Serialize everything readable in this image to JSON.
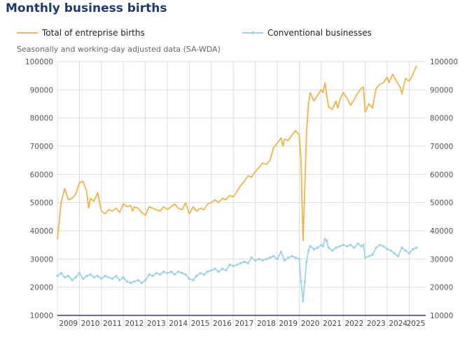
{
  "chart_data": {
    "type": "line",
    "title": "Monthly business births",
    "subtitle": "Seasonally and working-day adjusted data (SA-WDA)",
    "ylim": [
      10000,
      100000
    ],
    "yticks": [
      10000,
      20000,
      30000,
      40000,
      50000,
      60000,
      70000,
      80000,
      90000,
      100000
    ],
    "ytick_labels": [
      "10000",
      "20000",
      "30000",
      "40000",
      "50000",
      "60000",
      "70000",
      "80000",
      "90000",
      "100000"
    ],
    "xlim": [
      2009.0,
      2025.75
    ],
    "year_labels": [
      "2009",
      "2010",
      "2011",
      "2012",
      "2013",
      "2014",
      "2015",
      "2016",
      "2017",
      "2018",
      "2019",
      "2020",
      "2021",
      "2022",
      "2023",
      "2024",
      "2025"
    ],
    "colors": {
      "total": "#f0b448",
      "conventional": "#9dd2e8",
      "grid": "#dddddd",
      "baseline": "#3a3a8c"
    },
    "series": [
      {
        "name": "Total of entreprise births",
        "key": "total",
        "marker": "none",
        "points": [
          [
            2009.0,
            37000
          ],
          [
            2009.17,
            50000
          ],
          [
            2009.33,
            55000
          ],
          [
            2009.5,
            51000
          ],
          [
            2009.67,
            51500
          ],
          [
            2009.83,
            53000
          ],
          [
            2010.0,
            57000
          ],
          [
            2010.17,
            57500
          ],
          [
            2010.33,
            54000
          ],
          [
            2010.42,
            48000
          ],
          [
            2010.5,
            51500
          ],
          [
            2010.67,
            50500
          ],
          [
            2010.83,
            53500
          ],
          [
            2011.0,
            47000
          ],
          [
            2011.17,
            46000
          ],
          [
            2011.33,
            47500
          ],
          [
            2011.5,
            47000
          ],
          [
            2011.67,
            48000
          ],
          [
            2011.83,
            46500
          ],
          [
            2012.0,
            49500
          ],
          [
            2012.17,
            48500
          ],
          [
            2012.33,
            49000
          ],
          [
            2012.42,
            47000
          ],
          [
            2012.5,
            48500
          ],
          [
            2012.67,
            48000
          ],
          [
            2012.83,
            46500
          ],
          [
            2013.0,
            45500
          ],
          [
            2013.17,
            48500
          ],
          [
            2013.33,
            48000
          ],
          [
            2013.5,
            47500
          ],
          [
            2013.67,
            47000
          ],
          [
            2013.83,
            48500
          ],
          [
            2014.0,
            47500
          ],
          [
            2014.17,
            48500
          ],
          [
            2014.33,
            49500
          ],
          [
            2014.5,
            48000
          ],
          [
            2014.67,
            47500
          ],
          [
            2014.83,
            50000
          ],
          [
            2015.0,
            46000
          ],
          [
            2015.17,
            48500
          ],
          [
            2015.33,
            47000
          ],
          [
            2015.5,
            48000
          ],
          [
            2015.67,
            47500
          ],
          [
            2015.83,
            49500
          ],
          [
            2016.0,
            50000
          ],
          [
            2016.17,
            51000
          ],
          [
            2016.33,
            50000
          ],
          [
            2016.5,
            51500
          ],
          [
            2016.67,
            51000
          ],
          [
            2016.83,
            52500
          ],
          [
            2017.0,
            52000
          ],
          [
            2017.17,
            54000
          ],
          [
            2017.33,
            56000
          ],
          [
            2017.5,
            57500
          ],
          [
            2017.67,
            59500
          ],
          [
            2017.83,
            59000
          ],
          [
            2018.0,
            61000
          ],
          [
            2018.17,
            62500
          ],
          [
            2018.33,
            64000
          ],
          [
            2018.5,
            63500
          ],
          [
            2018.67,
            65000
          ],
          [
            2018.83,
            69500
          ],
          [
            2019.0,
            71000
          ],
          [
            2019.17,
            73000
          ],
          [
            2019.25,
            70000
          ],
          [
            2019.33,
            72500
          ],
          [
            2019.5,
            72000
          ],
          [
            2019.67,
            74000
          ],
          [
            2019.83,
            75500
          ],
          [
            2020.0,
            74000
          ],
          [
            2020.08,
            65000
          ],
          [
            2020.17,
            36500
          ],
          [
            2020.25,
            55000
          ],
          [
            2020.33,
            75000
          ],
          [
            2020.42,
            85000
          ],
          [
            2020.5,
            89000
          ],
          [
            2020.67,
            86000
          ],
          [
            2020.83,
            88000
          ],
          [
            2021.0,
            90000
          ],
          [
            2021.08,
            89000
          ],
          [
            2021.17,
            92500
          ],
          [
            2021.25,
            88000
          ],
          [
            2021.33,
            84000
          ],
          [
            2021.5,
            83000
          ],
          [
            2021.67,
            86000
          ],
          [
            2021.75,
            83500
          ],
          [
            2021.83,
            86000
          ],
          [
            2022.0,
            89000
          ],
          [
            2022.17,
            87000
          ],
          [
            2022.33,
            84500
          ],
          [
            2022.5,
            86500
          ],
          [
            2022.67,
            89000
          ],
          [
            2022.83,
            90500
          ],
          [
            2022.92,
            91000
          ],
          [
            2023.0,
            82000
          ],
          [
            2023.17,
            85000
          ],
          [
            2023.33,
            83500
          ],
          [
            2023.5,
            90500
          ],
          [
            2023.67,
            92000
          ],
          [
            2023.83,
            92500
          ],
          [
            2024.0,
            94500
          ],
          [
            2024.08,
            92500
          ],
          [
            2024.25,
            95500
          ],
          [
            2024.42,
            93000
          ],
          [
            2024.58,
            91000
          ],
          [
            2024.67,
            88500
          ],
          [
            2024.83,
            94000
          ],
          [
            2025.0,
            93000
          ],
          [
            2025.17,
            95500
          ],
          [
            2025.33,
            98500
          ]
        ]
      },
      {
        "name": "Conventional businesses",
        "key": "conventional",
        "marker": "dot",
        "points": [
          [
            2009.0,
            24000
          ],
          [
            2009.17,
            25000
          ],
          [
            2009.33,
            23500
          ],
          [
            2009.5,
            24000
          ],
          [
            2009.67,
            22500
          ],
          [
            2009.83,
            23500
          ],
          [
            2010.0,
            25000
          ],
          [
            2010.17,
            23000
          ],
          [
            2010.33,
            24000
          ],
          [
            2010.5,
            24500
          ],
          [
            2010.67,
            23500
          ],
          [
            2010.83,
            24000
          ],
          [
            2011.0,
            23000
          ],
          [
            2011.17,
            24000
          ],
          [
            2011.33,
            23500
          ],
          [
            2011.5,
            23000
          ],
          [
            2011.67,
            24000
          ],
          [
            2011.83,
            22500
          ],
          [
            2012.0,
            23500
          ],
          [
            2012.17,
            22000
          ],
          [
            2012.33,
            21500
          ],
          [
            2012.5,
            22000
          ],
          [
            2012.67,
            22500
          ],
          [
            2012.83,
            21500
          ],
          [
            2013.0,
            22500
          ],
          [
            2013.17,
            24500
          ],
          [
            2013.33,
            24000
          ],
          [
            2013.5,
            25000
          ],
          [
            2013.67,
            24500
          ],
          [
            2013.83,
            25500
          ],
          [
            2014.0,
            25000
          ],
          [
            2014.17,
            25500
          ],
          [
            2014.33,
            24500
          ],
          [
            2014.5,
            25500
          ],
          [
            2014.67,
            25000
          ],
          [
            2014.83,
            24500
          ],
          [
            2015.0,
            23000
          ],
          [
            2015.17,
            22500
          ],
          [
            2015.33,
            24000
          ],
          [
            2015.5,
            25000
          ],
          [
            2015.67,
            24500
          ],
          [
            2015.83,
            25500
          ],
          [
            2016.0,
            26000
          ],
          [
            2016.17,
            26500
          ],
          [
            2016.33,
            25500
          ],
          [
            2016.5,
            26500
          ],
          [
            2016.67,
            26000
          ],
          [
            2016.83,
            28000
          ],
          [
            2017.0,
            27500
          ],
          [
            2017.17,
            28000
          ],
          [
            2017.33,
            28500
          ],
          [
            2017.5,
            29000
          ],
          [
            2017.67,
            28500
          ],
          [
            2017.83,
            30500
          ],
          [
            2018.0,
            29500
          ],
          [
            2018.17,
            30000
          ],
          [
            2018.33,
            29500
          ],
          [
            2018.5,
            30000
          ],
          [
            2018.67,
            30500
          ],
          [
            2018.83,
            31000
          ],
          [
            2019.0,
            30000
          ],
          [
            2019.17,
            32500
          ],
          [
            2019.33,
            29500
          ],
          [
            2019.5,
            30500
          ],
          [
            2019.67,
            31000
          ],
          [
            2019.83,
            30500
          ],
          [
            2020.0,
            30000
          ],
          [
            2020.08,
            22000
          ],
          [
            2020.17,
            15000
          ],
          [
            2020.25,
            22000
          ],
          [
            2020.33,
            29000
          ],
          [
            2020.42,
            33000
          ],
          [
            2020.5,
            34500
          ],
          [
            2020.67,
            33500
          ],
          [
            2020.83,
            34000
          ],
          [
            2021.0,
            35000
          ],
          [
            2021.08,
            34500
          ],
          [
            2021.17,
            37000
          ],
          [
            2021.25,
            36500
          ],
          [
            2021.33,
            34000
          ],
          [
            2021.5,
            33000
          ],
          [
            2021.67,
            34000
          ],
          [
            2021.83,
            34500
          ],
          [
            2022.0,
            35000
          ],
          [
            2022.17,
            34500
          ],
          [
            2022.33,
            35000
          ],
          [
            2022.5,
            34000
          ],
          [
            2022.67,
            35500
          ],
          [
            2022.83,
            34500
          ],
          [
            2022.92,
            35000
          ],
          [
            2023.0,
            30500
          ],
          [
            2023.17,
            31000
          ],
          [
            2023.33,
            31500
          ],
          [
            2023.5,
            34000
          ],
          [
            2023.67,
            35000
          ],
          [
            2023.83,
            34500
          ],
          [
            2024.0,
            33500
          ],
          [
            2024.17,
            33000
          ],
          [
            2024.33,
            32000
          ],
          [
            2024.5,
            31000
          ],
          [
            2024.67,
            34000
          ],
          [
            2024.83,
            33000
          ],
          [
            2025.0,
            32000
          ],
          [
            2025.17,
            33500
          ],
          [
            2025.33,
            34000
          ]
        ]
      }
    ]
  }
}
